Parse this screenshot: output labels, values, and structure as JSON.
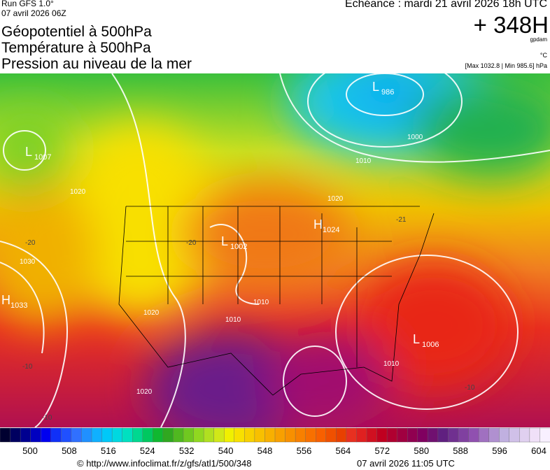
{
  "header": {
    "run": "Run GFS 1.0°",
    "run_date": "07 avril 2026 06Z",
    "valid": "Echéance : mardi 21 avril 2026 18h UTC",
    "lead": "+ 348H",
    "unit_geo": "gpdam",
    "unit_temp": "°C",
    "extremes": "[Max 1032.8 | Min 985.6] hPa",
    "titles": [
      "Géopotentiel à 500hPa",
      "Température à 500hPa",
      "Pression au niveau de la mer"
    ]
  },
  "centers": [
    {
      "symbol": "L",
      "pressure": "1007"
    },
    {
      "symbol": "L",
      "pressure": "986"
    },
    {
      "symbol": "H",
      "pressure": "1024"
    },
    {
      "symbol": "L",
      "pressure": "1002"
    },
    {
      "symbol": "H",
      "pressure": "1033"
    },
    {
      "symbol": "L",
      "pressure": "1006"
    }
  ],
  "isobar_labels": [
    "1000",
    "1010",
    "1020",
    "1020",
    "1030",
    "1020",
    "1010",
    "1010",
    "1010",
    "1020"
  ],
  "temperature_labels": [
    "-20",
    "-21",
    "-20",
    "-10",
    "-10",
    "-10"
  ],
  "colorbar_ticks": [
    500,
    508,
    516,
    524,
    532,
    540,
    548,
    556,
    564,
    572,
    580,
    588,
    596,
    604
  ],
  "footer": {
    "source": "© http://www.infoclimat.fr/z/gfs/atl1/500/348",
    "generated": "07 avril 2026 11:05 UTC"
  }
}
